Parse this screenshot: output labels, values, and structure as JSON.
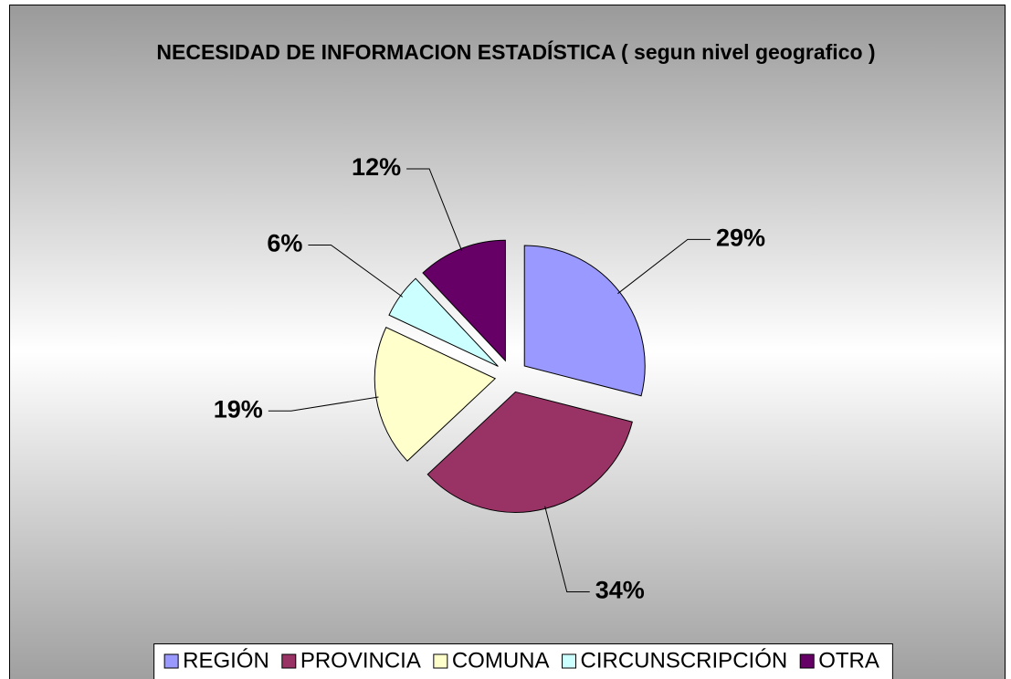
{
  "chart_data": {
    "type": "pie",
    "title": "NECESIDAD DE INFORMACION ESTADÍSTICA ( segun nivel geografico )",
    "categories": [
      "REGIÓN",
      "PROVINCIA",
      "COMUNA",
      "CIRCUNSCRIPCIÓN",
      "OTRA"
    ],
    "values": [
      29,
      34,
      19,
      6,
      12
    ],
    "value_labels": [
      "29%",
      "34%",
      "19%",
      "6%",
      "12%"
    ],
    "colors": [
      "#9999ff",
      "#993366",
      "#ffffcc",
      "#ccffff",
      "#660066"
    ],
    "legend": "bottom"
  }
}
